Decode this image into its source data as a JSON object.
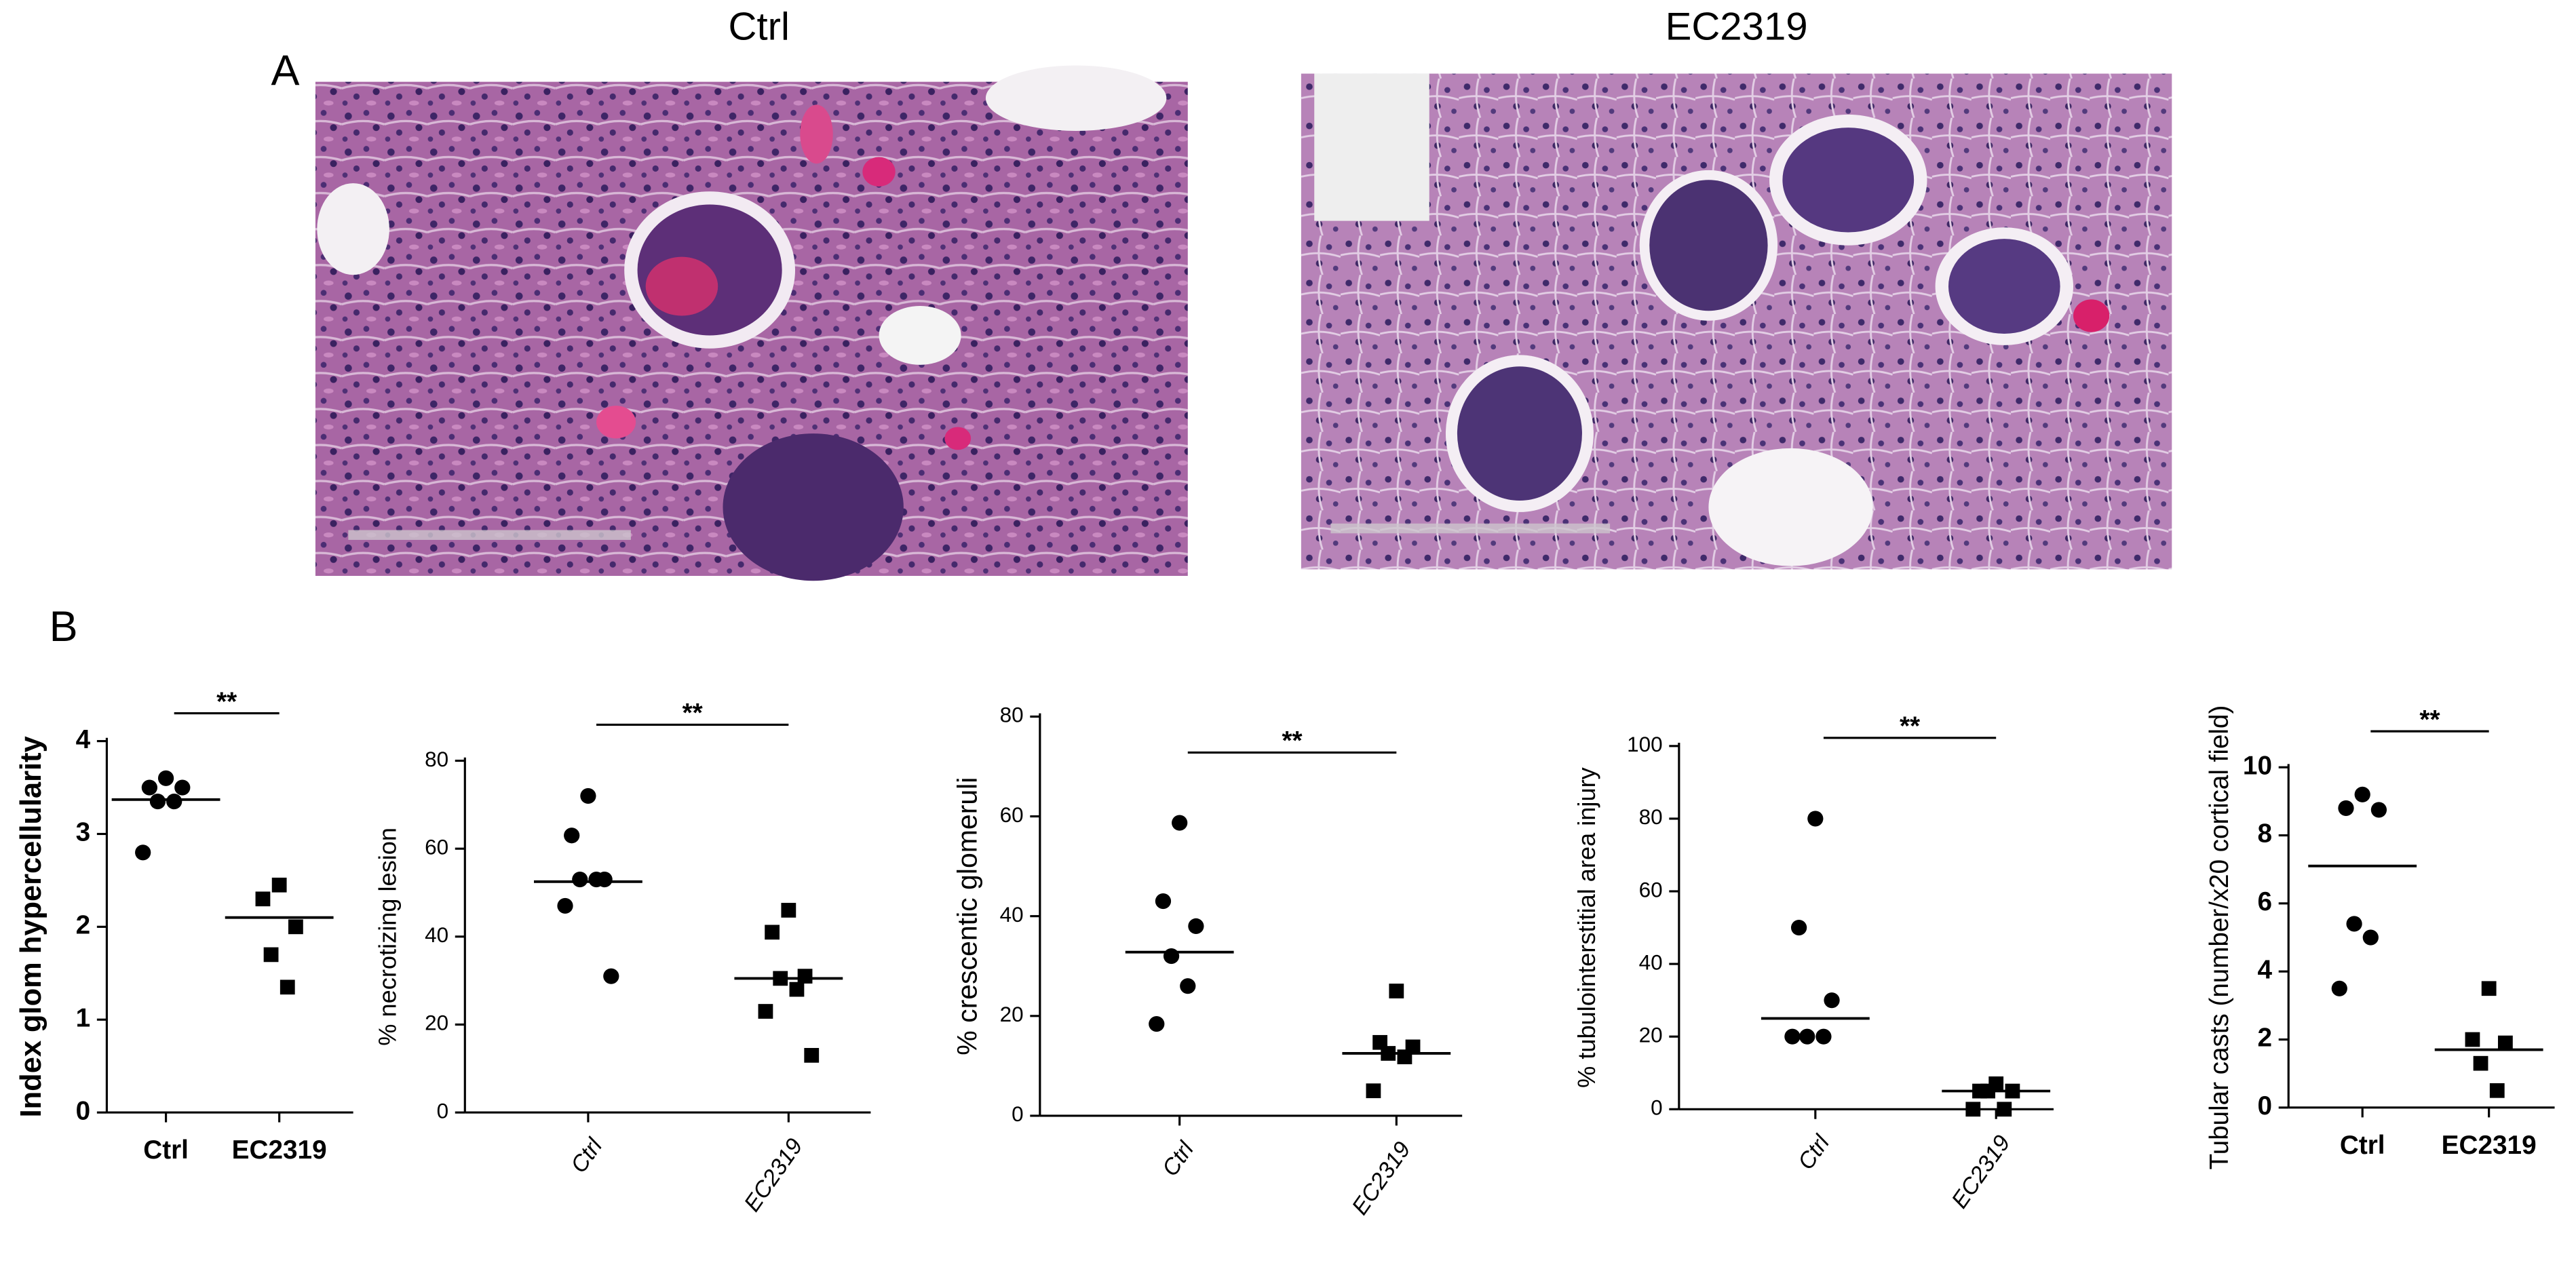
{
  "panel_a": {
    "label": "A",
    "images": [
      "Ctrl",
      "EC2319"
    ]
  },
  "panel_b": {
    "label": "B"
  },
  "chart_data": [
    {
      "type": "dot",
      "ylabel": "Index glom hypercellularity",
      "categories": [
        "Ctrl",
        "EC2319"
      ],
      "markers": [
        "circle",
        "square"
      ],
      "color": "#000000",
      "values": [
        [
          3.6,
          3.5,
          3.5,
          3.35,
          3.35,
          2.8
        ],
        [
          2.45,
          2.3,
          2.0,
          1.7,
          1.35
        ]
      ],
      "means": [
        3.37,
        2.1
      ],
      "annotation": "**",
      "ylim": [
        0,
        4
      ],
      "yticks": [
        0,
        1,
        2,
        3,
        4
      ]
    },
    {
      "type": "dot",
      "ylabel": "% necrotizing lesion",
      "categories": [
        "Ctrl",
        "EC2319"
      ],
      "markers": [
        "circle",
        "square"
      ],
      "color": "#000000",
      "values": [
        [
          72,
          63,
          53,
          53,
          53,
          47,
          31
        ],
        [
          46,
          41,
          31,
          30.5,
          28,
          23,
          13
        ]
      ],
      "means": [
        52.5,
        30.5
      ],
      "annotation": "**",
      "ylim": [
        0,
        80
      ],
      "yticks": [
        0,
        20,
        40,
        60,
        80
      ]
    },
    {
      "type": "dot",
      "ylabel": "% crescentic glomeruli",
      "categories": [
        "Ctrl",
        "EC2319"
      ],
      "markers": [
        "circle",
        "square"
      ],
      "color": "#000000",
      "values": [
        [
          58.7,
          43,
          38,
          32,
          26,
          18.4
        ],
        [
          25,
          14.7,
          13.8,
          12.5,
          11.8,
          5
        ]
      ],
      "means": [
        32.8,
        12.5
      ],
      "annotation": "**",
      "ylim": [
        0,
        80
      ],
      "yticks": [
        0,
        20,
        40,
        60,
        80
      ]
    },
    {
      "type": "dot",
      "ylabel": "% tubulointerstitial area injury",
      "categories": [
        "Ctrl",
        "EC2319"
      ],
      "markers": [
        "circle",
        "square"
      ],
      "color": "#000000",
      "values": [
        [
          80,
          50,
          30,
          20,
          20,
          20
        ],
        [
          7,
          5,
          5,
          5,
          0,
          0
        ]
      ],
      "means": [
        25,
        5
      ],
      "annotation": "**",
      "ylim": [
        0,
        100
      ],
      "yticks": [
        0,
        20,
        40,
        60,
        80,
        100
      ]
    },
    {
      "type": "dot",
      "ylabel": "Tubular casts (number/x20 cortical field)",
      "categories": [
        "Ctrl",
        "EC2319"
      ],
      "markers": [
        "circle",
        "square"
      ],
      "color": "#000000",
      "values": [
        [
          9.2,
          8.8,
          8.75,
          5.4,
          5,
          3.5
        ],
        [
          3.5,
          2.0,
          1.9,
          1.3,
          0.5
        ]
      ],
      "means": [
        7.1,
        1.7
      ],
      "annotation": "**",
      "ylim": [
        0,
        10
      ],
      "yticks": [
        0,
        2,
        4,
        6,
        8,
        10
      ]
    }
  ]
}
